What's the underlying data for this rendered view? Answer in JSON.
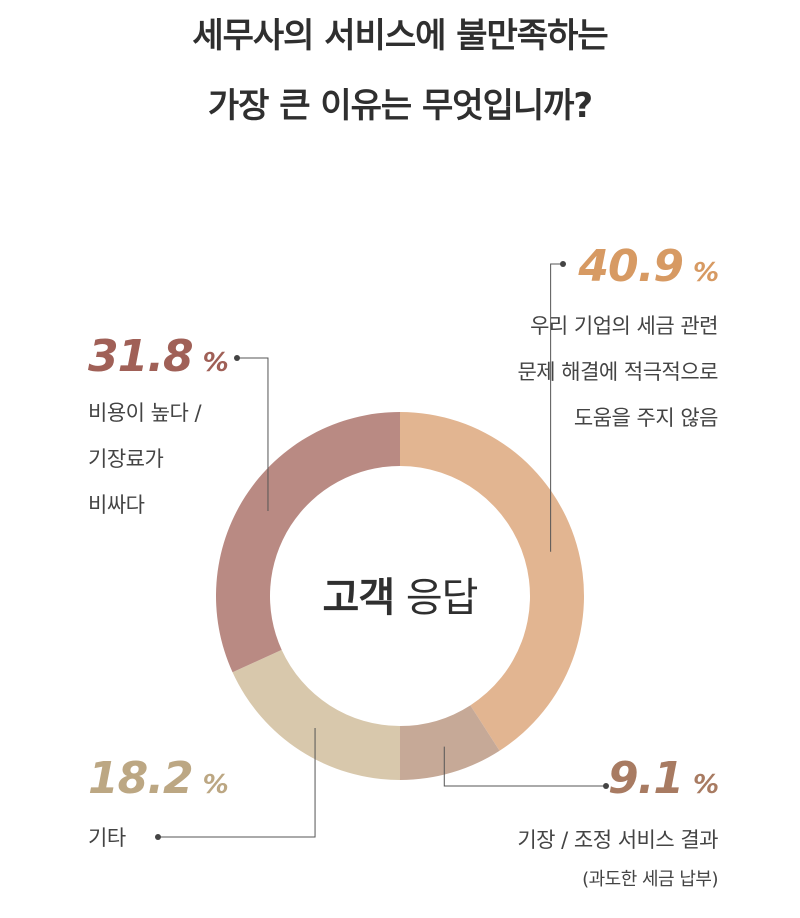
{
  "title": {
    "line1": "세무사의 서비스에 불만족하는",
    "line2": "가장 큰 이유는 무엇입니까?"
  },
  "center": {
    "bold": "고객",
    "light": "응답"
  },
  "chart_data": {
    "type": "pie",
    "variant": "donut",
    "title": "세무사의 서비스에 불만족하는 가장 큰 이유는 무엇입니까?",
    "unit": "%",
    "slices": [
      {
        "id": "s1",
        "value": 40.9,
        "value_label": "40.9",
        "color": "#e2b591",
        "pct_color": "#d79a63",
        "label_lines": [
          "우리 기업의 세금 관련",
          "문제 해결에 적극적으로",
          "도움을 주지 않음"
        ]
      },
      {
        "id": "s2",
        "value": 9.1,
        "value_label": "9.1",
        "color": "#c6a997",
        "pct_color": "#a87b62",
        "label_lines": [
          "기장 / 조정 서비스 결과",
          "(과도한 세금 납부)"
        ]
      },
      {
        "id": "s3",
        "value": 18.2,
        "value_label": "18.2",
        "color": "#d8c8ac",
        "pct_color": "#bca783",
        "label_lines": [
          "기타"
        ]
      },
      {
        "id": "s4",
        "value": 31.8,
        "value_label": "31.8",
        "color": "#b98a83",
        "pct_color": "#a06057",
        "label_lines": [
          "비용이 높다 /",
          "기장료가",
          "비싸다"
        ]
      }
    ]
  }
}
